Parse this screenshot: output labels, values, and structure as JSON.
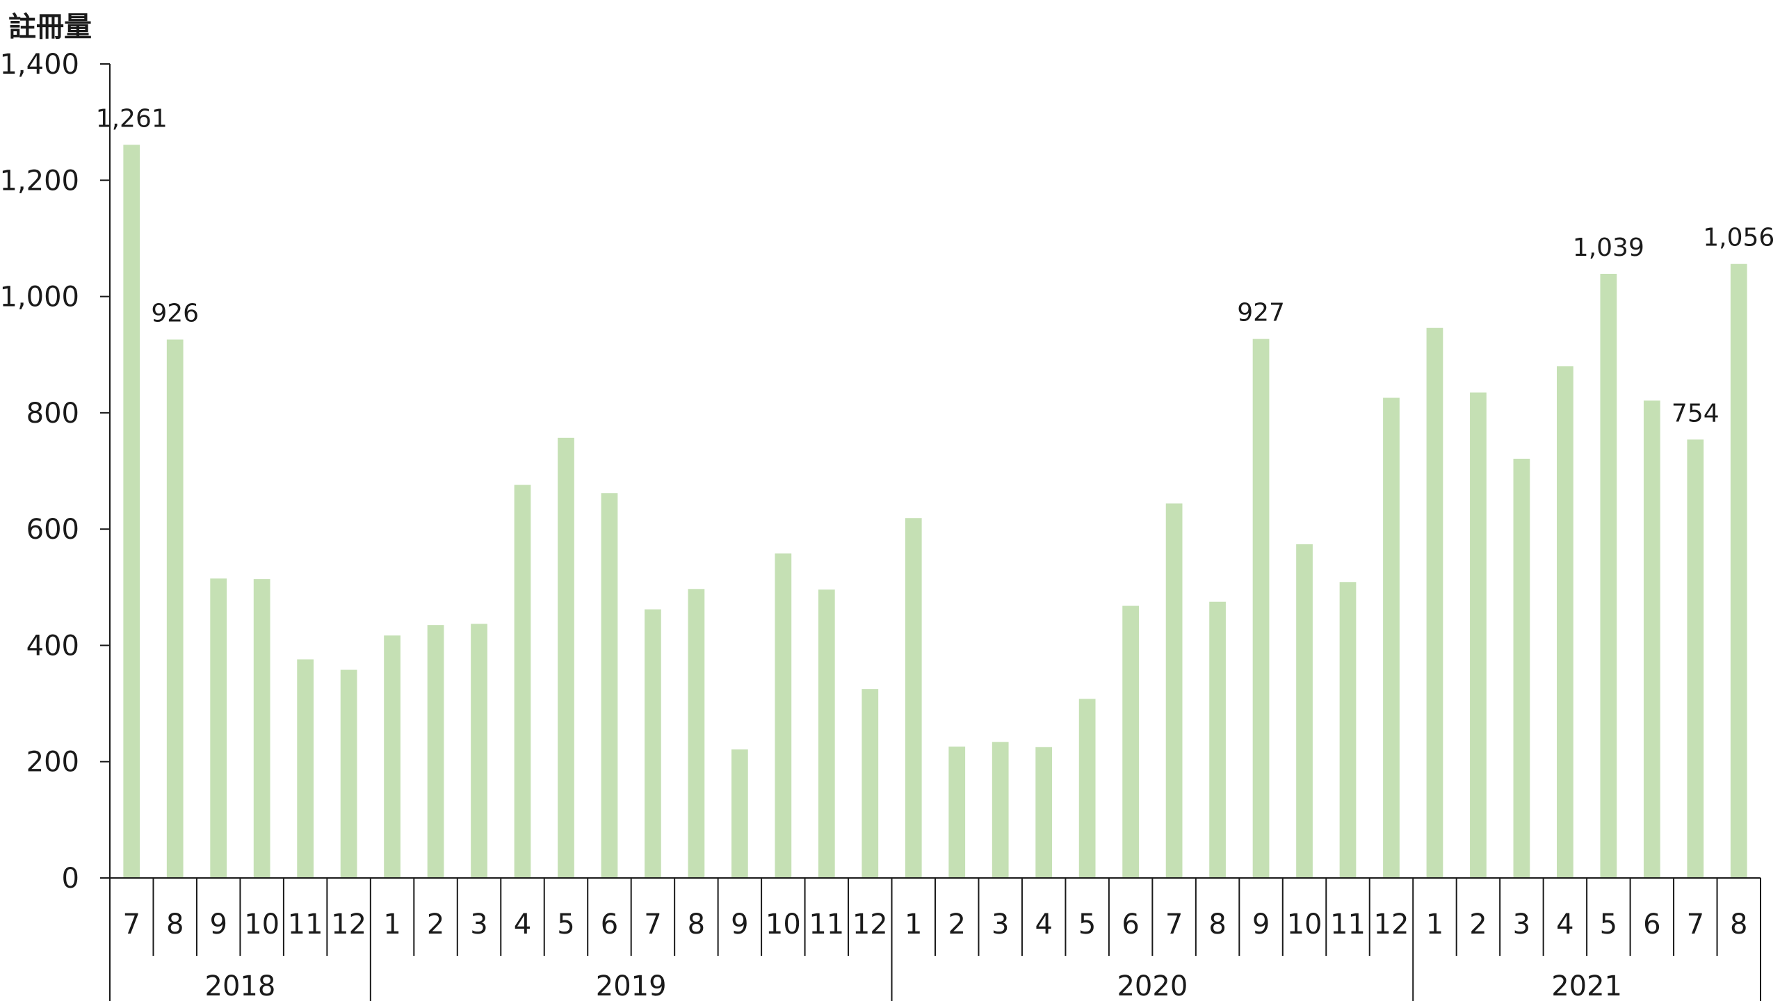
{
  "chart_data": {
    "type": "bar",
    "ylabel": "註冊量",
    "ylim": [
      0,
      1400
    ],
    "yticks": [
      "0",
      "200",
      "400",
      "600",
      "800",
      "1,000",
      "1,200",
      "1,400"
    ],
    "grid": false,
    "bar_color": "#c5e0b4",
    "years": [
      {
        "label": "2018",
        "months": [
          "7",
          "8",
          "9",
          "10",
          "11",
          "12"
        ]
      },
      {
        "label": "2019",
        "months": [
          "1",
          "2",
          "3",
          "4",
          "5",
          "6",
          "7",
          "8",
          "9",
          "10",
          "11",
          "12"
        ]
      },
      {
        "label": "2020",
        "months": [
          "1",
          "2",
          "3",
          "4",
          "5",
          "6",
          "7",
          "8",
          "9",
          "10",
          "11",
          "12"
        ]
      },
      {
        "label": "2021",
        "months": [
          "1",
          "2",
          "3",
          "4",
          "5",
          "6",
          "7",
          "8"
        ]
      }
    ],
    "values": [
      1261,
      926,
      515,
      514,
      376,
      358,
      417,
      435,
      437,
      676,
      757,
      662,
      462,
      497,
      221,
      558,
      496,
      325,
      619,
      226,
      234,
      225,
      308,
      468,
      644,
      475,
      927,
      574,
      509,
      826,
      946,
      835,
      721,
      880,
      1039,
      821,
      754,
      1056
    ],
    "data_labels": [
      {
        "index": 0,
        "text": "1,261"
      },
      {
        "index": 1,
        "text": "926"
      },
      {
        "index": 26,
        "text": "927"
      },
      {
        "index": 34,
        "text": "1,039"
      },
      {
        "index": 36,
        "text": "754"
      },
      {
        "index": 37,
        "text": "1,056"
      }
    ]
  }
}
